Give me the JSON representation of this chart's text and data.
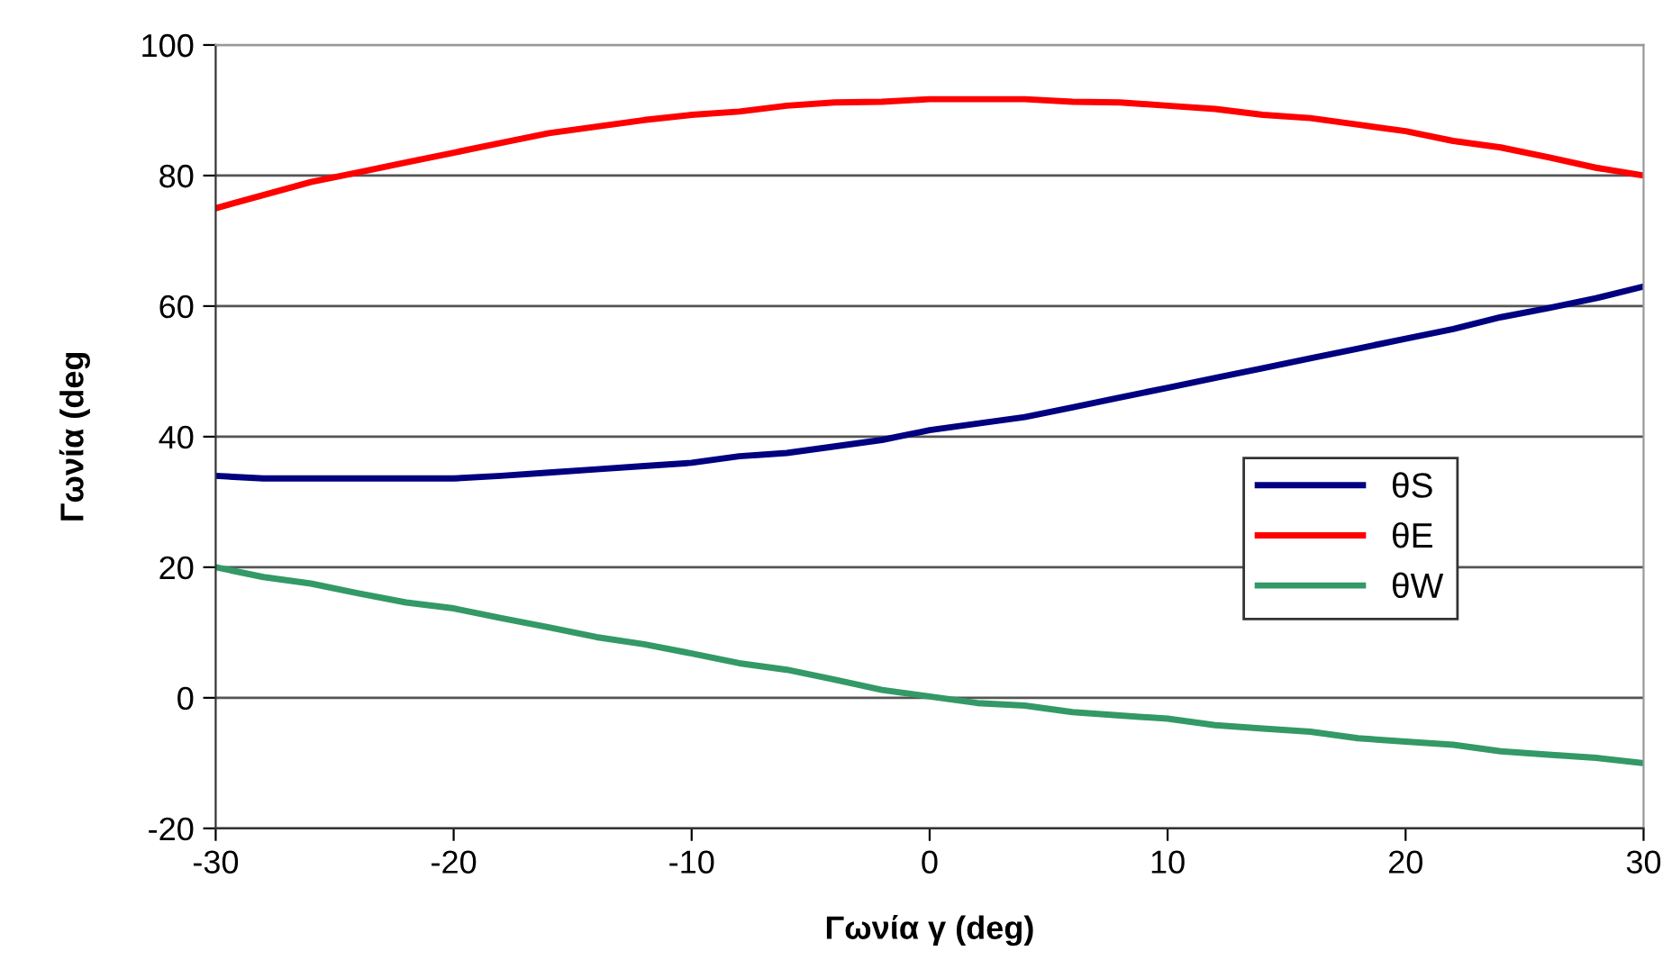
{
  "chart_data": {
    "type": "line",
    "xlabel": "Γωνία γ (deg)",
    "ylabel": "Γωνία (deg",
    "x": [
      -30,
      -28,
      -26,
      -24,
      -22,
      -20,
      -18,
      -16,
      -14,
      -12,
      -10,
      -8,
      -6,
      -4,
      -2,
      0,
      2,
      4,
      6,
      8,
      10,
      12,
      14,
      16,
      18,
      20,
      22,
      24,
      26,
      28,
      30
    ],
    "series": [
      {
        "name": "θS",
        "color": "#000080",
        "values": [
          34,
          33.6,
          33.6,
          33.6,
          33.6,
          33.6,
          34,
          34.5,
          35,
          35.5,
          36,
          37,
          37.5,
          38.5,
          39.5,
          41,
          42,
          43,
          44.5,
          46,
          47.5,
          49,
          50.5,
          52,
          53.5,
          55,
          56.5,
          58.3,
          59.7,
          61.2,
          63
        ]
      },
      {
        "name": "θE",
        "color": "#ff0000",
        "values": [
          75,
          77,
          79,
          80.5,
          82,
          83.5,
          85,
          86.5,
          87.5,
          88.5,
          89.3,
          89.8,
          90.7,
          91.2,
          91.3,
          91.7,
          91.7,
          91.7,
          91.3,
          91.2,
          90.7,
          90.2,
          89.3,
          88.8,
          87.8,
          86.8,
          85.3,
          84.3,
          82.8,
          81.2,
          80
        ]
      },
      {
        "name": "θW",
        "color": "#339966",
        "values": [
          20,
          18.5,
          17.5,
          16,
          14.6,
          13.7,
          12.2,
          10.8,
          9.3,
          8.2,
          6.8,
          5.3,
          4.3,
          2.8,
          1.2,
          0.2,
          -0.8,
          -1.2,
          -2.2,
          -2.7,
          -3.2,
          -4.2,
          -4.7,
          -5.2,
          -6.2,
          -6.7,
          -7.2,
          -8.2,
          -8.7,
          -9.2,
          -10
        ]
      }
    ],
    "xlim": [
      -30,
      30
    ],
    "xticks": [
      -30,
      -20,
      -10,
      0,
      10,
      20,
      30
    ],
    "ylim": [
      -20,
      100
    ],
    "yticks": [
      -20,
      0,
      20,
      40,
      60,
      80,
      100
    ],
    "grid": "y",
    "legend": "right",
    "marker": "none",
    "line_style": "solid"
  }
}
